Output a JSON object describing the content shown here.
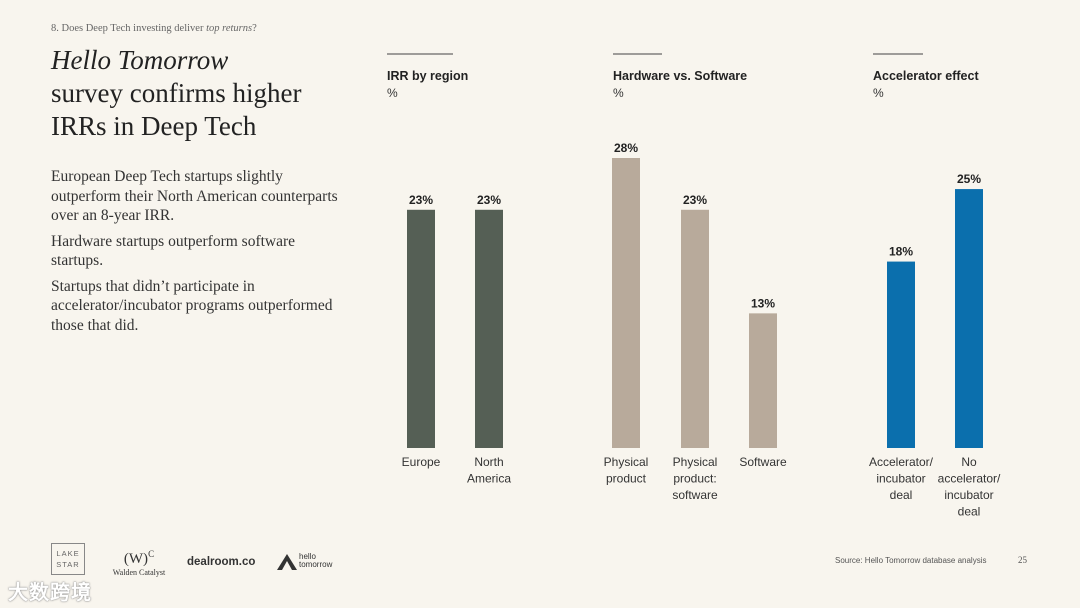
{
  "breadcrumb": {
    "prefix": "8. Does Deep Tech investing deliver ",
    "emphasis": "top returns",
    "suffix": "?"
  },
  "title": {
    "italic": "Hello Tomorrow",
    "line1": "survey confirms higher",
    "line2": "IRRs in Deep Tech"
  },
  "bullets": [
    "European Deep Tech startups slightly outperform their North American counterparts over an 8-year IRR.",
    "Hardware startups outperform software startups.",
    "Startups that didn’t participate in accelerator/incubator programs outperformed those that did."
  ],
  "source": "Source: Hello Tomorrow database analysis",
  "page_number": "25",
  "logos": {
    "lakestar_line1": "LAKE",
    "lakestar_line2": "STAR",
    "walden_mark": "(W)",
    "walden_sup": "C",
    "walden_name": "Walden Catalyst",
    "dealroom": "dealroom.co",
    "hello_line1": "hello",
    "hello_line2": "tomorrow"
  },
  "watermark": "大数跨境",
  "colors": {
    "region": "#555f55",
    "hardware": "#b8aa9b",
    "accelerator": "#0b6fad"
  },
  "chart_data": [
    {
      "type": "bar",
      "title": "IRR by region",
      "ylabel": "%",
      "categories": [
        [
          "Europe"
        ],
        [
          "North",
          "America"
        ]
      ],
      "values": [
        23,
        23
      ],
      "labels": [
        "23%",
        "23%"
      ],
      "color": "#555f55"
    },
    {
      "type": "bar",
      "title": "Hardware vs. Software",
      "ylabel": "%",
      "categories": [
        [
          "Physical",
          "product"
        ],
        [
          "Physical",
          "product:",
          "software"
        ],
        [
          "Software"
        ]
      ],
      "values": [
        28,
        23,
        13
      ],
      "labels": [
        "28%",
        "23%",
        "13%"
      ],
      "color": "#b8aa9b"
    },
    {
      "type": "bar",
      "title": "Accelerator effect",
      "ylabel": "%",
      "categories": [
        [
          "Accelerator/",
          "incubator",
          "deal"
        ],
        [
          "No",
          "accelerator/",
          "incubator",
          "deal"
        ]
      ],
      "values": [
        18,
        25
      ],
      "labels": [
        "18%",
        "25%"
      ],
      "color": "#0b6fad"
    }
  ]
}
